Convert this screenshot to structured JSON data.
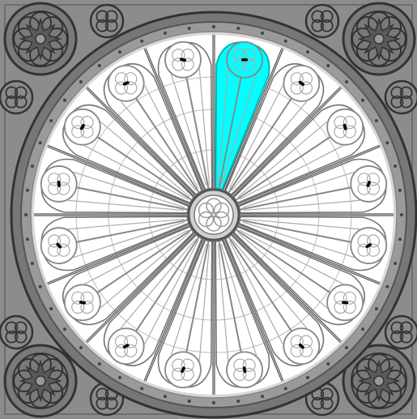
{
  "game": {
    "segment_count": 16,
    "selected_segment": 0,
    "colors": {
      "frame": "#8c8c8c",
      "stone_dark": "#333333",
      "stone_mid": "#6e6e6e",
      "stone_light": "#b0b0b0",
      "glass": "#ffffff",
      "highlight": "#00ffff",
      "highlight_stroke": "#00b5b5",
      "mark": "#000000"
    },
    "corner_ornaments": [
      {
        "name": "corner-rosette-top-left"
      },
      {
        "name": "corner-rosette-top-right"
      },
      {
        "name": "corner-rosette-bottom-left"
      },
      {
        "name": "corner-rosette-bottom-right"
      }
    ]
  }
}
